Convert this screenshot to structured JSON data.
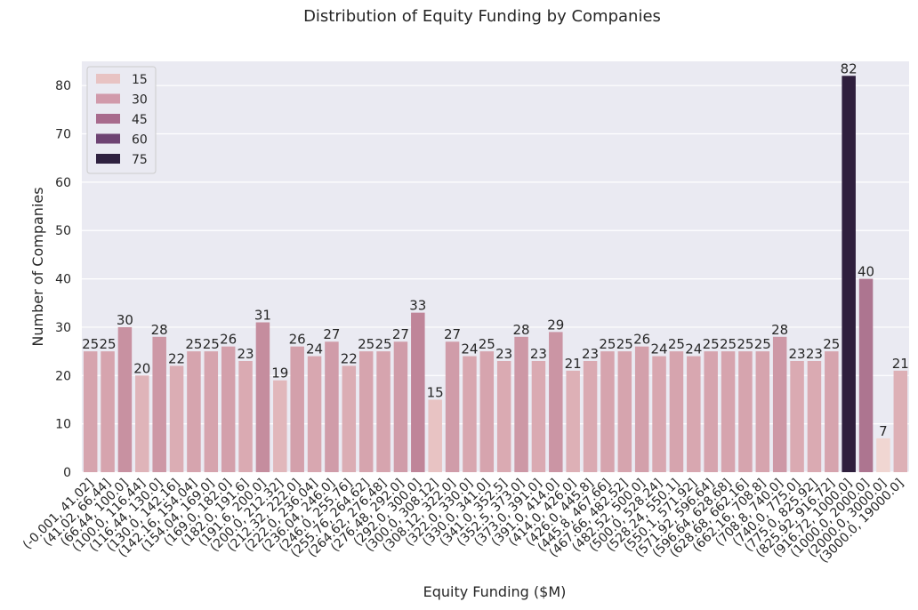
{
  "chart_data": {
    "type": "bar",
    "title": "Distribution of Equity Funding by Companies",
    "xlabel": "Equity Funding ($M)",
    "ylabel": "Number of Companies",
    "ylim": [
      0,
      85
    ],
    "yticks": [
      0,
      10,
      20,
      30,
      40,
      50,
      60,
      70,
      80
    ],
    "grid": true,
    "legend": {
      "placement": "top-left",
      "entries": [
        "15",
        "30",
        "45",
        "60",
        "75"
      ],
      "colors": [
        "#e8c3c3",
        "#d19aab",
        "#a86b8d",
        "#6e4373",
        "#2f2140"
      ]
    },
    "color_scale": {
      "stops": [
        {
          "value": 7,
          "color": "#f0d6d2"
        },
        {
          "value": 15,
          "color": "#e8c3c3"
        },
        {
          "value": 25,
          "color": "#d6a4ae"
        },
        {
          "value": 33,
          "color": "#bf8599"
        },
        {
          "value": 40,
          "color": "#ad7590"
        },
        {
          "value": 82,
          "color": "#2f1f3d"
        }
      ]
    },
    "categories": [
      "(-0.001, 41.02]",
      "(41.02, 66.44]",
      "(66.44, 100.0]",
      "(100.0, 116.44]",
      "(116.44, 130.0]",
      "(130.0, 142.16]",
      "(142.16, 154.04]",
      "(154.04, 169.0]",
      "(169.0, 182.0]",
      "(182.0, 191.6]",
      "(191.6, 200.0]",
      "(200.0, 212.32]",
      "(212.32, 222.0]",
      "(222.0, 236.04]",
      "(236.04, 246.0]",
      "(246.0, 255.76]",
      "(255.76, 264.62]",
      "(264.62, 276.48]",
      "(276.48, 292.0]",
      "(292.0, 300.0]",
      "(300.0, 308.12]",
      "(308.12, 322.0]",
      "(322.0, 330.0]",
      "(330.0, 341.0]",
      "(341.0, 352.5]",
      "(352.5, 373.0]",
      "(373.0, 391.0]",
      "(391.0, 414.0]",
      "(414.0, 426.0]",
      "(426.0, 445.8]",
      "(445.8, 467.66]",
      "(467.66, 482.52]",
      "(482.52, 500.0]",
      "(500.0, 528.24]",
      "(528.24, 550.1]",
      "(550.1, 571.92]",
      "(571.92, 596.64]",
      "(596.64, 628.68]",
      "(628.68, 662.16]",
      "(662.16, 708.8]",
      "(708.8, 740.0]",
      "(740.0, 775.0]",
      "(775.0, 825.92]",
      "(825.92, 916.72]",
      "(916.72, 1000.0]",
      "(1000.0, 2000.0]",
      "(2000.0, 3000.0]",
      "(3000.0, 19000.0]"
    ],
    "values": [
      25,
      25,
      30,
      20,
      28,
      22,
      25,
      25,
      26,
      23,
      31,
      19,
      26,
      24,
      27,
      22,
      25,
      25,
      27,
      33,
      15,
      27,
      24,
      25,
      23,
      28,
      23,
      29,
      21,
      23,
      25,
      25,
      26,
      24,
      25,
      24,
      25,
      25,
      25,
      25,
      28,
      23,
      23,
      25,
      82,
      40,
      7,
      21
    ]
  }
}
